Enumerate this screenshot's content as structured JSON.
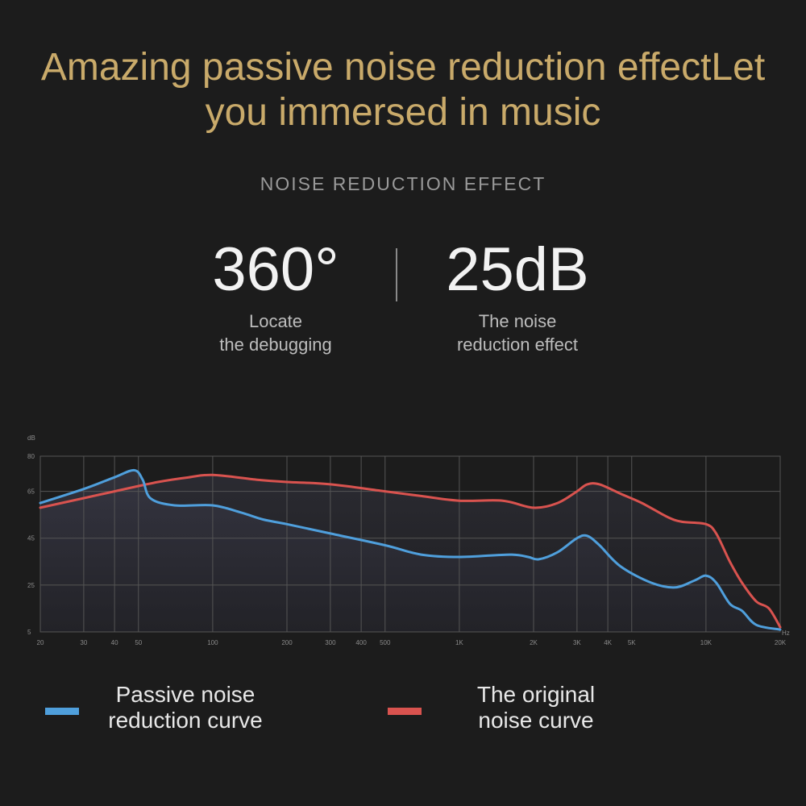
{
  "headline": {
    "line1": "Amazing passive noise reduction effectLet",
    "line2": "you immersed in music"
  },
  "section_label": "NOISE REDUCTION EFFECT",
  "stats": [
    {
      "value": "360°",
      "caption_line1": "Locate",
      "caption_line2": "the debugging"
    },
    {
      "value": "25dB",
      "caption_line1": "The noise",
      "caption_line2": "reduction effect"
    }
  ],
  "legend": [
    {
      "line1": "Passive noise",
      "line2": "reduction curve",
      "color": "#4f9fdc"
    },
    {
      "line1": "The original",
      "line2": "noise curve",
      "color": "#d9534f"
    }
  ],
  "colors": {
    "headline": "#c9aa6a",
    "background": "#1c1c1c",
    "grid": "#555555",
    "passive_curve": "#4f9fdc",
    "original_curve": "#d9534f"
  },
  "chart_data": {
    "type": "line",
    "title": "",
    "ylabel": "dB",
    "xlabel": "Hz",
    "x_scale": "log",
    "xlim": [
      20,
      20000
    ],
    "ylim": [
      5,
      80
    ],
    "yticks": [
      5,
      25,
      45,
      65,
      80
    ],
    "ytick_labels": [
      "5",
      "25",
      "45",
      "65",
      "80"
    ],
    "xticks": [
      20,
      30,
      40,
      50,
      100,
      200,
      300,
      400,
      500,
      1000,
      2000,
      3000,
      4000,
      5000,
      10000,
      20000
    ],
    "xtick_labels": [
      "20",
      "30",
      "40",
      "50",
      "100",
      "200",
      "300",
      "400",
      "500",
      "1K",
      "2K",
      "3K",
      "4K",
      "5K",
      "10K",
      "20K"
    ],
    "grid": true,
    "series": [
      {
        "name": "Passive noise reduction curve",
        "color": "#4f9fdc",
        "x": [
          20,
          30,
          40,
          48,
          52,
          56,
          70,
          100,
          130,
          160,
          200,
          300,
          500,
          700,
          1000,
          1600,
          1900,
          2100,
          2500,
          3000,
          3300,
          3700,
          4500,
          6000,
          7500,
          9000,
          10000,
          11000,
          12500,
          14000,
          16000,
          20000
        ],
        "y": [
          60,
          66,
          71,
          74,
          70,
          62,
          59,
          59,
          56,
          53,
          51,
          47,
          42,
          38,
          37,
          38,
          37,
          36,
          39,
          45,
          46,
          42,
          33,
          26,
          24,
          27,
          29,
          26,
          17,
          14,
          8,
          6
        ]
      },
      {
        "name": "The original noise curve",
        "color": "#d9534f",
        "x": [
          20,
          40,
          60,
          80,
          100,
          150,
          200,
          300,
          500,
          700,
          1000,
          1500,
          2000,
          2500,
          3000,
          3300,
          3700,
          4500,
          5500,
          7000,
          8000,
          10000,
          11000,
          12500,
          14000,
          16000,
          18000,
          20000
        ],
        "y": [
          58,
          65,
          69,
          71,
          72,
          70,
          69,
          68,
          65,
          63,
          61,
          61,
          58,
          60,
          65,
          68,
          68,
          64,
          60,
          54,
          52,
          51,
          47,
          35,
          26,
          18,
          15,
          7
        ]
      }
    ]
  }
}
